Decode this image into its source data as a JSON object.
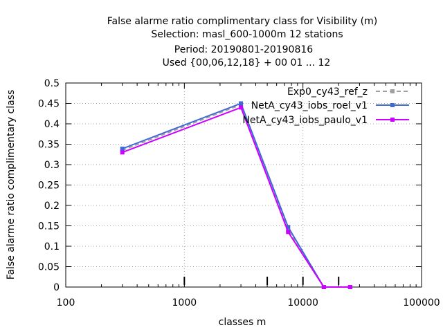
{
  "chart_data": {
    "type": "line",
    "title_lines": [
      "False alarme ratio complimentary class  for Visibility (m)",
      "Selection: masl_600-1000m     12 stations",
      "Period: 20190801-20190816",
      "Used {00,06,12,18} + 00 01 ... 12"
    ],
    "xlabel": "classes m",
    "ylabel": "False alarme ratio complimentary class",
    "x_scale": "log",
    "xlim": [
      100,
      100000
    ],
    "ylim": [
      0,
      0.5
    ],
    "x_ticks": [
      100,
      1000,
      10000,
      100000
    ],
    "x_tick_labels": [
      "100",
      "1000",
      "10000",
      "100000"
    ],
    "y_ticks": [
      0,
      0.05,
      0.1,
      0.15,
      0.2,
      0.25,
      0.3,
      0.35,
      0.4,
      0.45,
      0.5
    ],
    "y_tick_labels": [
      "0",
      "0.05",
      "0.1",
      "0.15",
      "0.2",
      "0.25",
      "0.3",
      "0.35",
      "0.4",
      "0.45",
      "0.5"
    ],
    "grid": true,
    "legend_position": "top-right",
    "series": [
      {
        "name": "Exp0_cy43_ref_z",
        "color": "#a0a0a0",
        "dashed": true,
        "x": [
          300,
          3000,
          7500,
          15000,
          25000
        ],
        "y": [
          0.335,
          0.447,
          0.14,
          0,
          0
        ]
      },
      {
        "name": "NetA_cy43_iobs_roel_v1",
        "color": "#4169d6",
        "dashed": false,
        "x": [
          300,
          3000,
          7500,
          15000,
          25000
        ],
        "y": [
          0.339,
          0.45,
          0.147,
          0,
          0
        ]
      },
      {
        "name": "NetA_cy43_iobs_paulo_v1",
        "color": "#cc00ff",
        "dashed": false,
        "x": [
          300,
          3000,
          7500,
          15000,
          25000
        ],
        "y": [
          0.33,
          0.44,
          0.135,
          0,
          0
        ]
      }
    ],
    "sample_marks_x": [
      1000,
      5000,
      10000,
      20000
    ]
  }
}
